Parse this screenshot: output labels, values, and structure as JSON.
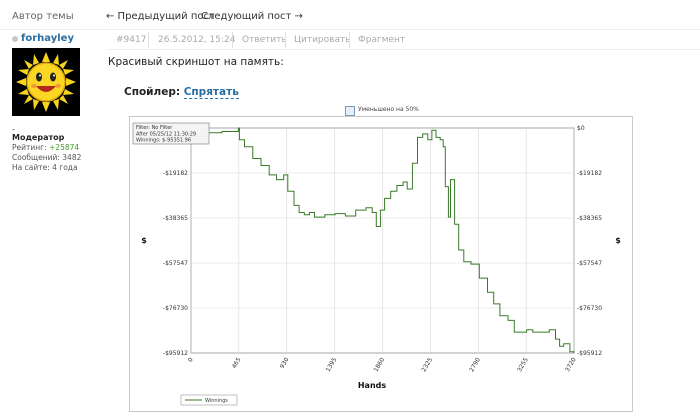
{
  "header": {
    "author_label": "Автор темы",
    "prev_post": "← Предыдущий пост",
    "next_post": "Следующий пост →"
  },
  "author": {
    "username": "forhayley",
    "role_dash": "-",
    "role": "Модератор",
    "rating_label": "Рейтинг: ",
    "rating_value": "+25874",
    "messages": "Сообщений: 3482",
    "on_site": "На сайте: 4 года"
  },
  "post_meta": {
    "number": "#9417",
    "datetime": "26.5.2012, 15:24",
    "reply": "Ответить",
    "quote": "Цитировать",
    "fragment": "Фрагмент"
  },
  "post": {
    "text": "Красивый скриншот на память:",
    "spoiler_label": "Спойлер",
    "spoiler_colon": ": ",
    "spoiler_hide": "Спрятать"
  },
  "image_note": {
    "resize_text": "Уменьшено на 50%"
  },
  "chart_data": {
    "type": "line",
    "info_box": [
      "Filter: No Filter",
      "After 05/25/12 11:30:29",
      "Winnings: $-95351.96"
    ],
    "xlabel": "Hands",
    "ylabel": "$",
    "x_ticks": [
      0,
      465,
      930,
      1395,
      1860,
      2325,
      2790,
      3255,
      3720
    ],
    "y_ticks": [
      "$0",
      "-$19182",
      "-$38365",
      "-$57547",
      "-$76730",
      "-$95912"
    ],
    "xlim": [
      0,
      3720
    ],
    "ylim": [
      -95912,
      0
    ],
    "grid": true,
    "legend": {
      "position": "bottom-left",
      "entries": [
        "Winnings"
      ]
    },
    "line_color": "#3a7a2a",
    "series": [
      {
        "name": "Winnings",
        "points": [
          [
            0,
            0
          ],
          [
            150,
            -2000
          ],
          [
            300,
            -1500
          ],
          [
            460,
            0
          ],
          [
            470,
            -5000
          ],
          [
            520,
            -8000
          ],
          [
            600,
            -13000
          ],
          [
            680,
            -16000
          ],
          [
            760,
            -20000
          ],
          [
            830,
            -22000
          ],
          [
            900,
            -20000
          ],
          [
            940,
            -27000
          ],
          [
            1000,
            -33000
          ],
          [
            1050,
            -36000
          ],
          [
            1100,
            -37000
          ],
          [
            1150,
            -36000
          ],
          [
            1200,
            -38000
          ],
          [
            1300,
            -37000
          ],
          [
            1400,
            -36500
          ],
          [
            1500,
            -37500
          ],
          [
            1600,
            -35000
          ],
          [
            1700,
            -34000
          ],
          [
            1760,
            -36000
          ],
          [
            1800,
            -42000
          ],
          [
            1840,
            -35000
          ],
          [
            1880,
            -30000
          ],
          [
            1940,
            -27000
          ],
          [
            2000,
            -24500
          ],
          [
            2060,
            -23000
          ],
          [
            2100,
            -26000
          ],
          [
            2150,
            -15000
          ],
          [
            2200,
            -4000
          ],
          [
            2250,
            -2500
          ],
          [
            2300,
            -5000
          ],
          [
            2340,
            -1000
          ],
          [
            2380,
            -4000
          ],
          [
            2420,
            -5000
          ],
          [
            2450,
            -8000
          ],
          [
            2470,
            -25000
          ],
          [
            2500,
            -38000
          ],
          [
            2520,
            -22000
          ],
          [
            2560,
            -41000
          ],
          [
            2600,
            -52000
          ],
          [
            2650,
            -57000
          ],
          [
            2720,
            -58000
          ],
          [
            2800,
            -64000
          ],
          [
            2880,
            -70000
          ],
          [
            2940,
            -75000
          ],
          [
            3000,
            -80000
          ],
          [
            3080,
            -82000
          ],
          [
            3140,
            -87000
          ],
          [
            3200,
            -87000
          ],
          [
            3260,
            -86000
          ],
          [
            3320,
            -87000
          ],
          [
            3400,
            -87000
          ],
          [
            3480,
            -86000
          ],
          [
            3540,
            -90000
          ],
          [
            3580,
            -93000
          ],
          [
            3620,
            -92000
          ],
          [
            3680,
            -95351.96
          ],
          [
            3720,
            -96000
          ]
        ]
      }
    ]
  },
  "colors": {
    "link": "#2a6ea1",
    "rating": "#4a9a2f",
    "meta_text": "#aaaaaa"
  },
  "icons": [
    "online-status-dot",
    "sun-avatar",
    "resize-icon"
  ]
}
